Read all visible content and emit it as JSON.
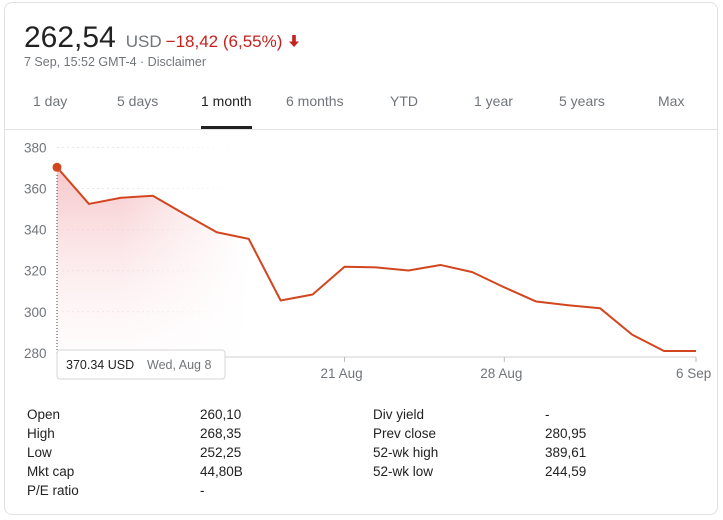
{
  "header": {
    "price": "262,54",
    "currency": "USD",
    "change": "−18,42 (6,55%)",
    "timestamp": "7 Sep, 15:52 GMT-4 · Disclaimer",
    "change_color": "#c5221f"
  },
  "tabs": [
    {
      "label": "1 day"
    },
    {
      "label": "5 days"
    },
    {
      "label": "1 month",
      "active": true
    },
    {
      "label": "6 months"
    },
    {
      "label": "YTD"
    },
    {
      "label": "1 year"
    },
    {
      "label": "5 years"
    },
    {
      "label": "Max"
    }
  ],
  "tooltip": {
    "value": "370.34 USD",
    "date": "Wed, Aug 8"
  },
  "chart_data": {
    "type": "area",
    "line_color": "#d2461f",
    "yticks": [
      "380",
      "360",
      "340",
      "320",
      "300",
      "280"
    ],
    "ytick_values": [
      380,
      360,
      340,
      320,
      300,
      280
    ],
    "xticks": [
      "21 Aug",
      "28 Aug",
      "6 Sep"
    ],
    "ylim": [
      278,
      388
    ],
    "x": [
      "Aug 8",
      "Aug 9",
      "Aug 10",
      "Aug 13",
      "Aug 14",
      "Aug 15",
      "Aug 16",
      "Aug 17",
      "Aug 20",
      "Aug 21",
      "Aug 22",
      "Aug 23",
      "Aug 24",
      "Aug 27",
      "Aug 28",
      "Aug 29",
      "Aug 30",
      "Aug 31",
      "Sep 4",
      "Sep 5",
      "Sep 6"
    ],
    "values": [
      370.34,
      352.5,
      355.5,
      356.5,
      347.5,
      338.7,
      335.5,
      305.5,
      308.4,
      321.9,
      321.6,
      320.1,
      322.8,
      319.3,
      311.9,
      305.0,
      303.2,
      301.7,
      288.9,
      280.9,
      280.9
    ],
    "highlight_index": 0
  },
  "stats": {
    "left": [
      {
        "label": "Open",
        "value": "260,10"
      },
      {
        "label": "High",
        "value": "268,35"
      },
      {
        "label": "Low",
        "value": "252,25"
      },
      {
        "label": "Mkt cap",
        "value": "44,80B"
      },
      {
        "label": "P/E ratio",
        "value": "-"
      }
    ],
    "right": [
      {
        "label": "Div yield",
        "value": "-"
      },
      {
        "label": "Prev close",
        "value": "280,95"
      },
      {
        "label": "52-wk high",
        "value": "389,61"
      },
      {
        "label": "52-wk low",
        "value": "244,59"
      }
    ]
  }
}
